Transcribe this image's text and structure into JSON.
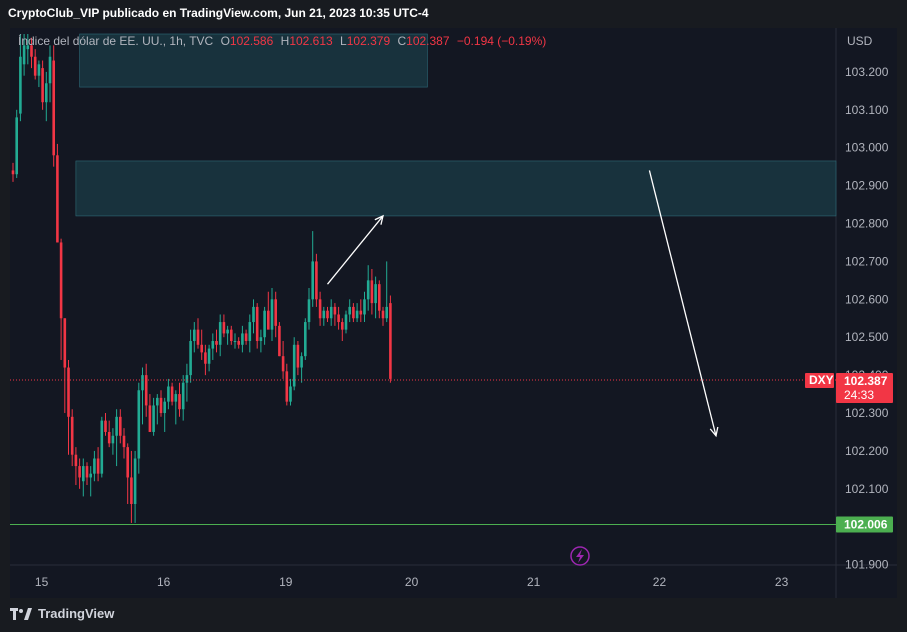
{
  "header": {
    "publisher_line": "CryptoClub_VIP publicado en TradingView.com, Jun 21, 2023 10:35 UTC-4"
  },
  "legend": {
    "symbol_name": "Índice del dólar de EE. UU., 1h, TVC",
    "open_label": "O",
    "open_value": "102.586",
    "high_label": "H",
    "high_value": "102.613",
    "low_label": "L",
    "low_value": "102.379",
    "close_label": "C",
    "close_value": "102.387",
    "change": "−0.194 (−0.19%)"
  },
  "footer": {
    "brand": "TradingView"
  },
  "colors": {
    "up": "#22ab94",
    "down": "#f23645",
    "background": "#131722",
    "zone": "#1a3a45",
    "support_line": "#4caf50",
    "price_line": "#f23645"
  },
  "chart_data": {
    "type": "candlestick",
    "symbol": "DXY",
    "currency": "USD",
    "ylim": [
      101.87,
      103.3
    ],
    "y_ticks": [
      "103.200",
      "103.100",
      "103.000",
      "102.900",
      "102.800",
      "102.700",
      "102.600",
      "102.500",
      "102.400",
      "102.300",
      "102.200",
      "102.100",
      "101.900"
    ],
    "x_ticks": [
      "15",
      "16",
      "19",
      "20",
      "21",
      "22",
      "23"
    ],
    "last_price": {
      "label": "DXY",
      "value": "102.387",
      "countdown": "24:33"
    },
    "support": {
      "value": "102.006"
    },
    "zones": [
      {
        "from": 103.16,
        "to": 103.3
      },
      {
        "from": 102.82,
        "to": 102.965
      }
    ],
    "candles": [
      [
        102.94,
        102.96,
        102.91,
        102.93
      ],
      [
        102.93,
        103.1,
        102.92,
        103.08
      ],
      [
        103.09,
        103.3,
        103.07,
        103.24
      ],
      [
        103.22,
        103.3,
        103.19,
        103.27
      ],
      [
        103.26,
        103.3,
        103.22,
        103.27
      ],
      [
        103.27,
        103.29,
        103.21,
        103.24
      ],
      [
        103.24,
        103.26,
        103.18,
        103.19
      ],
      [
        103.19,
        103.23,
        103.16,
        103.22
      ],
      [
        103.21,
        103.23,
        103.1,
        103.12
      ],
      [
        103.12,
        103.2,
        103.07,
        103.17
      ],
      [
        103.17,
        103.27,
        103.12,
        103.24
      ],
      [
        103.23,
        103.27,
        102.95,
        102.98
      ],
      [
        102.98,
        103.01,
        102.75,
        102.75
      ],
      [
        102.75,
        102.76,
        102.44,
        102.55
      ],
      [
        102.55,
        102.55,
        102.3,
        102.42
      ],
      [
        102.42,
        102.44,
        102.19,
        102.29
      ],
      [
        102.29,
        102.31,
        102.16,
        102.19
      ],
      [
        102.19,
        102.21,
        102.11,
        102.16
      ],
      [
        102.16,
        102.18,
        102.1,
        102.13
      ],
      [
        102.12,
        102.18,
        102.08,
        102.16
      ],
      [
        102.16,
        102.17,
        102.11,
        102.13
      ],
      [
        102.13,
        102.16,
        102.08,
        102.14
      ],
      [
        102.14,
        102.2,
        102.12,
        102.18
      ],
      [
        102.18,
        102.21,
        102.12,
        102.14
      ],
      [
        102.14,
        102.29,
        102.13,
        102.28
      ],
      [
        102.28,
        102.3,
        102.24,
        102.25
      ],
      [
        102.25,
        102.28,
        102.21,
        102.22
      ],
      [
        102.22,
        102.26,
        102.19,
        102.24
      ],
      [
        102.24,
        102.31,
        102.16,
        102.29
      ],
      [
        102.29,
        102.31,
        102.22,
        102.24
      ],
      [
        102.24,
        102.26,
        102.18,
        102.21
      ],
      [
        102.21,
        102.22,
        102.06,
        102.13
      ],
      [
        102.13,
        102.2,
        102.01,
        102.06
      ],
      [
        102.06,
        102.2,
        102.01,
        102.18
      ],
      [
        102.18,
        102.38,
        102.14,
        102.36
      ],
      [
        102.36,
        102.42,
        102.27,
        102.4
      ],
      [
        102.4,
        102.43,
        102.29,
        102.32
      ],
      [
        102.32,
        102.35,
        102.25,
        102.25
      ],
      [
        102.25,
        102.34,
        102.24,
        102.32
      ],
      [
        102.32,
        102.35,
        102.27,
        102.34
      ],
      [
        102.34,
        102.36,
        102.29,
        102.3
      ],
      [
        102.3,
        102.34,
        102.25,
        102.33
      ],
      [
        102.33,
        102.39,
        102.31,
        102.37
      ],
      [
        102.37,
        102.38,
        102.32,
        102.33
      ],
      [
        102.33,
        102.36,
        102.27,
        102.35
      ],
      [
        102.35,
        102.38,
        102.29,
        102.31
      ],
      [
        102.31,
        102.4,
        102.28,
        102.38
      ],
      [
        102.38,
        102.43,
        102.33,
        102.4
      ],
      [
        102.4,
        102.52,
        102.38,
        102.49
      ],
      [
        102.49,
        102.54,
        102.46,
        102.52
      ],
      [
        102.52,
        102.55,
        102.47,
        102.48
      ],
      [
        102.48,
        102.52,
        102.44,
        102.46
      ],
      [
        102.46,
        102.48,
        102.4,
        102.43
      ],
      [
        102.43,
        102.48,
        102.41,
        102.47
      ],
      [
        102.47,
        102.51,
        102.44,
        102.49
      ],
      [
        102.49,
        102.52,
        102.46,
        102.48
      ],
      [
        102.48,
        102.56,
        102.45,
        102.54
      ],
      [
        102.54,
        102.56,
        102.5,
        102.51
      ],
      [
        102.51,
        102.53,
        102.48,
        102.52
      ],
      [
        102.52,
        102.53,
        102.48,
        102.49
      ],
      [
        102.49,
        102.51,
        102.47,
        102.49
      ],
      [
        102.49,
        102.5,
        102.47,
        102.48
      ],
      [
        102.48,
        102.53,
        102.46,
        102.51
      ],
      [
        102.51,
        102.52,
        102.48,
        102.49
      ],
      [
        102.49,
        102.56,
        102.46,
        102.54
      ],
      [
        102.54,
        102.6,
        102.51,
        102.58
      ],
      [
        102.58,
        102.59,
        102.47,
        102.49
      ],
      [
        102.49,
        102.52,
        102.46,
        102.5
      ],
      [
        102.5,
        102.58,
        102.48,
        102.57
      ],
      [
        102.57,
        102.62,
        102.53,
        102.52
      ],
      [
        102.52,
        102.63,
        102.49,
        102.6
      ],
      [
        102.6,
        102.62,
        102.5,
        102.53
      ],
      [
        102.53,
        102.54,
        102.45,
        102.45
      ],
      [
        102.45,
        102.49,
        102.39,
        102.41
      ],
      [
        102.41,
        102.43,
        102.32,
        102.33
      ],
      [
        102.33,
        102.39,
        102.32,
        102.37
      ],
      [
        102.37,
        102.5,
        102.36,
        102.48
      ],
      [
        102.48,
        102.49,
        102.4,
        102.42
      ],
      [
        102.42,
        102.46,
        102.38,
        102.45
      ],
      [
        102.45,
        102.55,
        102.44,
        102.54
      ],
      [
        102.54,
        102.63,
        102.52,
        102.6
      ],
      [
        102.6,
        102.78,
        102.58,
        102.7
      ],
      [
        102.7,
        102.72,
        102.58,
        102.6
      ],
      [
        102.6,
        102.62,
        102.53,
        102.55
      ],
      [
        102.55,
        102.58,
        102.53,
        102.57
      ],
      [
        102.57,
        102.58,
        102.54,
        102.55
      ],
      [
        102.55,
        102.6,
        102.53,
        102.58
      ],
      [
        102.58,
        102.59,
        102.53,
        102.56
      ],
      [
        102.56,
        102.58,
        102.52,
        102.54
      ],
      [
        102.54,
        102.55,
        102.49,
        102.52
      ],
      [
        102.52,
        102.57,
        102.51,
        102.56
      ],
      [
        102.56,
        102.6,
        102.54,
        102.58
      ],
      [
        102.58,
        102.59,
        102.54,
        102.55
      ],
      [
        102.55,
        102.59,
        102.54,
        102.57
      ],
      [
        102.57,
        102.6,
        102.54,
        102.56
      ],
      [
        102.56,
        102.62,
        102.54,
        102.6
      ],
      [
        102.6,
        102.69,
        102.57,
        102.65
      ],
      [
        102.65,
        102.68,
        102.56,
        102.59
      ],
      [
        102.59,
        102.66,
        102.55,
        102.64
      ],
      [
        102.64,
        102.65,
        102.55,
        102.57
      ],
      [
        102.57,
        102.58,
        102.53,
        102.55
      ],
      [
        102.55,
        102.7,
        102.54,
        102.58
      ],
      [
        102.59,
        102.61,
        102.38,
        102.39
      ]
    ],
    "annotations": [
      {
        "type": "arrow",
        "from": {
          "candle": 85,
          "price": 102.64
        },
        "to": {
          "candle": 100,
          "price": 102.82
        }
      },
      {
        "type": "arrow",
        "from": {
          "candle": 172,
          "price": 102.94
        },
        "to": {
          "candle": 190,
          "price": 102.24
        }
      }
    ]
  }
}
